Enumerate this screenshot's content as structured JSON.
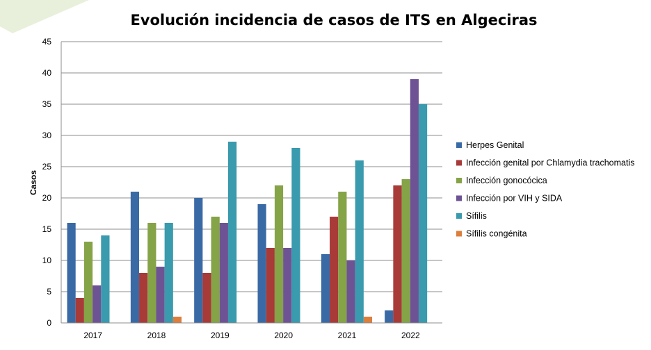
{
  "chart_data": {
    "type": "bar",
    "title": "Evolución incidencia de casos de ITS en Algeciras",
    "xlabel": "",
    "ylabel": "Casos",
    "ylim": [
      0,
      45
    ],
    "yticks": [
      0,
      5,
      10,
      15,
      20,
      25,
      30,
      35,
      40,
      45
    ],
    "grid": true,
    "legend_position": "right",
    "categories": [
      "2017",
      "2018",
      "2019",
      "2020",
      "2021",
      "2022"
    ],
    "series": [
      {
        "name": "Herpes Genital",
        "color": "#3A6AA6",
        "values": [
          16,
          21,
          20,
          19,
          11,
          2
        ]
      },
      {
        "name": "Infección genital por Chlamydia trachomatis",
        "color": "#A83A38",
        "values": [
          4,
          8,
          8,
          12,
          17,
          22
        ]
      },
      {
        "name": "Infección gonocócica",
        "color": "#85A347",
        "values": [
          13,
          16,
          17,
          22,
          21,
          23
        ]
      },
      {
        "name": "Infección por VIH y SIDA",
        "color": "#6E5394",
        "values": [
          6,
          9,
          16,
          12,
          10,
          39
        ]
      },
      {
        "name": "Sífilis",
        "color": "#3A9AAE",
        "values": [
          14,
          16,
          29,
          28,
          26,
          35
        ]
      },
      {
        "name": "Sífilis congénita",
        "color": "#DC7E3C",
        "values": [
          0,
          1,
          0,
          0,
          1,
          0
        ]
      }
    ]
  },
  "decoration_color": "#E8F0DC"
}
